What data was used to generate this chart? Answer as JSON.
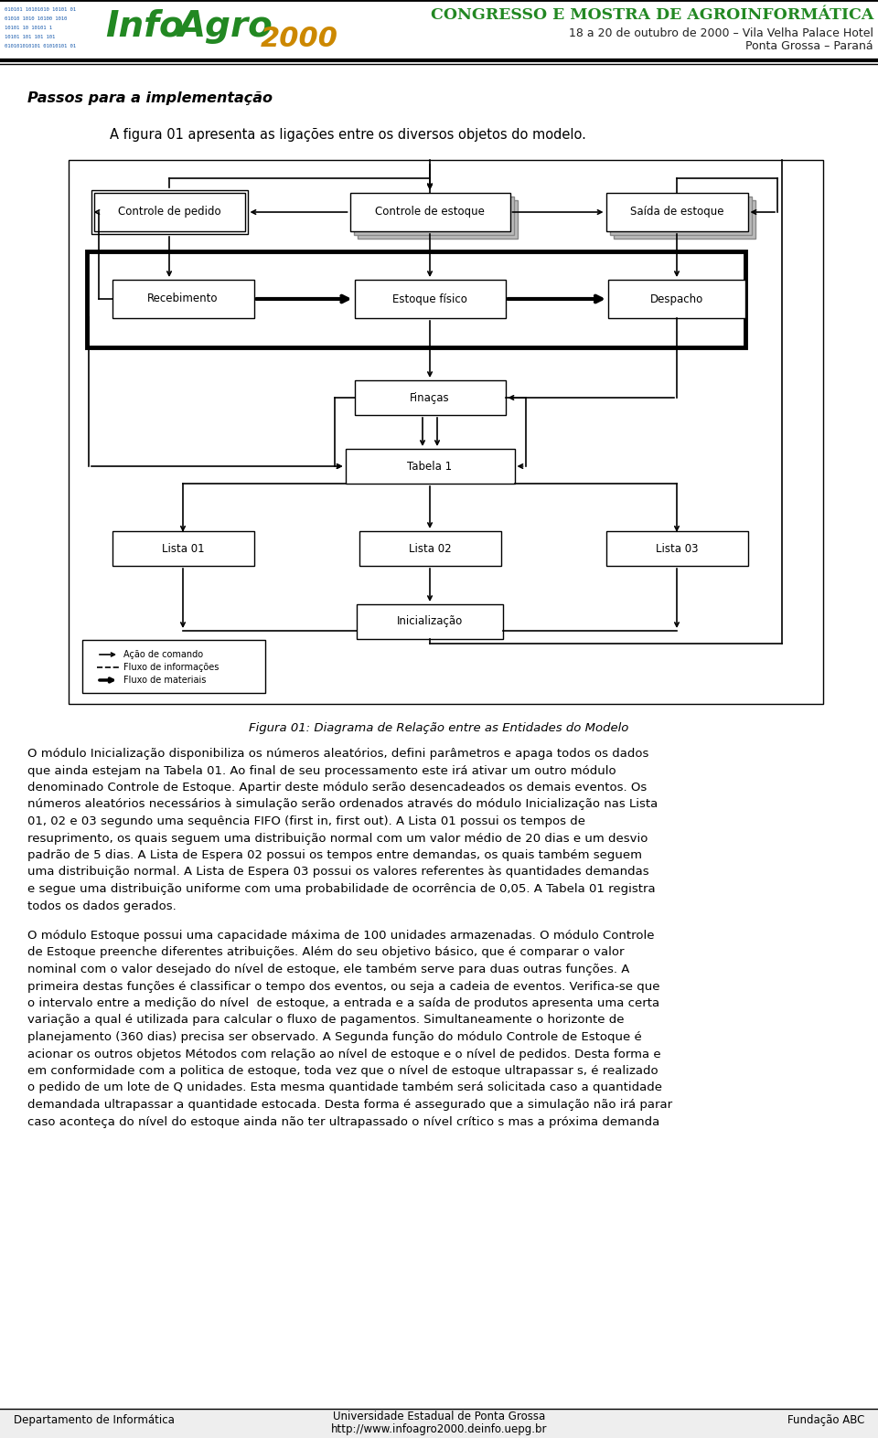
{
  "header_title": "CONGRESSO E MOSTRA DE AGROINFORMÁTICA",
  "header_sub1": "18 a 20 de outubro de 2000 – Vila Velha Palace Hotel",
  "header_sub2": "Ponta Grossa – Paraná",
  "section_title": "Passos para a implementação",
  "intro_text": "A figura 01 apresenta as ligações entre os diversos objetos do modelo.",
  "figure_caption": "Figura 01: Diagrama de Relação entre as Entidades do Modelo",
  "para1": [
    "O módulo —Inicialização— disponibiliza os números aleatórios, defini parâmetros e apaga todos os dados",
    "que ainda estejam na Tabela 01. Ao final de seu processamento este irá ativar um outro módulo",
    "denominado —Controle de Estoque—. Apartir deste módulo serão desencadeados os demais eventos. Os",
    "números aleatórios necessários à simulação serão ordenados através do módulo —Inicialização— nas —Lista",
    "01, 02 e 03— segundo uma sequência FIFO (first in, first out). A —Lista 01— possui os tempos de",
    "resuprimento, os quais seguem uma distribuição normal com um valor médio de 20 dias e um desvio",
    "padrão de 5 dias. A —Lista de Espera 02— possui os tempos entre demandas, os quais também seguem",
    "uma distribuição normal. A —Lista de Espera 03— possui os valores referentes às quantidades demandas",
    "e segue uma distribuição uniforme com uma probabilidade de ocorrência de 0,05. A —Tabela 01— registra",
    "todos os dados gerados."
  ],
  "para2": [
    "O módulo —Estoque— possui uma capacidade máxima de 100 unidades armazenadas. O módulo —Controle",
    "de Estoque— preenche diferentes atribuições. Além do seu objetivo básico, que é comparar o valor",
    "nominal com o valor desejado do nível de estoque, ele também serve para duas outras funções. A",
    "primeira destas funções é classificar o tempo dos eventos, ou seja a cadeia de eventos. Verifica-se que",
    "o intervalo entre a medição do nível  de estoque, a entrada e a saída de produtos apresenta uma certa",
    "variação a qual é utilizada para calcular o fluxo de pagamentos. Simultaneamente o horizonte de",
    "planejamento (360 dias) precisa ser observado. A Segunda função do módulo —Controle de Estoque— é",
    "acionar os outros objetos —Métodos— com relação ao nível de estoque e o nível de pedidos. Desta forma e",
    "em conformidade com a politica de estoque, toda vez que o nível de estoque ultrapassar s, é realizado",
    "o pedido de um lote de Q unidades. Esta mesma quantidade também será solicitada caso a quantidade",
    "demandada ultrapassar a quantidade estocada. Desta forma é assegurado que a simulação não irá parar",
    "caso aconteça do nível do estoque ainda não ter ultrapassado o nível crítico s mas a próxima demanda"
  ],
  "footer_left": "Departamento de Informática",
  "footer_center1": "Universidade Estadual de Ponta Grossa",
  "footer_center2": "http://www.infoagro2000.deinfo.uepg.br",
  "footer_right": "Fundação ABC"
}
